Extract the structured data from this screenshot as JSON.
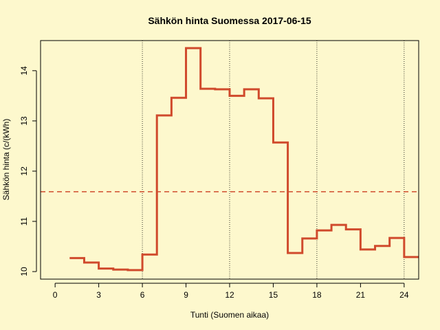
{
  "chart_data": {
    "type": "line",
    "style": "step",
    "title": "Sähkön hinta Suomessa 2017-06-15",
    "xlabel": "Tunti (Suomen aikaa)",
    "ylabel": "Sähkön hinta (c/(kWh)",
    "xlim": [
      -1,
      25
    ],
    "ylim": [
      9.85,
      14.6
    ],
    "x_ticks": [
      0,
      3,
      6,
      9,
      12,
      15,
      18,
      21,
      24
    ],
    "x_tick_labels": [
      "0",
      "3",
      "6",
      "9",
      "12",
      "15",
      "18",
      "21",
      "24"
    ],
    "y_ticks": [
      10,
      11,
      12,
      13,
      14
    ],
    "y_tick_labels": [
      "10",
      "11",
      "12",
      "13",
      "14"
    ],
    "vertical_gridlines": [
      6,
      12,
      18,
      24
    ],
    "series": [
      {
        "color": "#d04a2c",
        "x": [
          1,
          2,
          3,
          4,
          5,
          6,
          7,
          8,
          9,
          10,
          11,
          12,
          13,
          14,
          15,
          16,
          17,
          18,
          19,
          20,
          21,
          22,
          23,
          24,
          25
        ],
        "values": [
          10.27,
          10.18,
          10.06,
          10.04,
          10.03,
          10.34,
          13.11,
          13.46,
          14.45,
          13.64,
          13.63,
          13.5,
          13.63,
          13.45,
          12.57,
          10.37,
          10.66,
          10.82,
          10.93,
          10.84,
          10.44,
          10.51,
          10.67,
          10.29,
          10.29
        ]
      }
    ],
    "reference_line": {
      "value": 11.59,
      "color": "#d04a2c",
      "style": "dashed"
    },
    "grid": false
  }
}
